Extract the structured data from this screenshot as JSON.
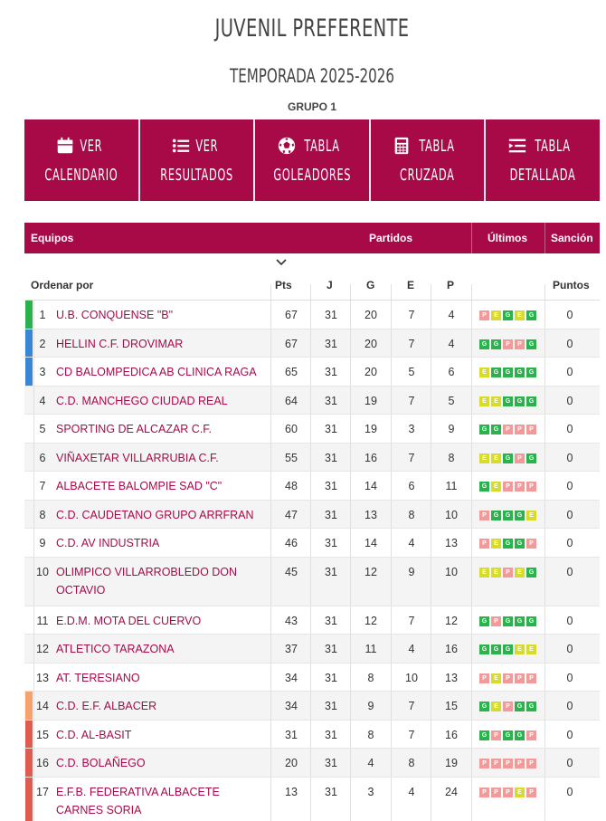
{
  "title": "JUVENIL PREFERENTE",
  "season": "TEMPORADA 2025-2026",
  "group": "GRUPO 1",
  "menu": [
    {
      "line1": "VER",
      "line2": "CALENDARIO",
      "icon": "calendar-icon",
      "name": "ver-calendario-button"
    },
    {
      "line1": "VER",
      "line2": "RESULTADOS",
      "icon": "list-icon",
      "name": "ver-resultados-button"
    },
    {
      "line1": "TABLA",
      "line2": "GOLEADORES",
      "icon": "soccer-ball-icon",
      "name": "tabla-goleadores-button"
    },
    {
      "line1": "TABLA",
      "line2": "CRUZADA",
      "icon": "calculator-icon",
      "name": "tabla-cruzada-button"
    },
    {
      "line1": "TABLA",
      "line2": "DETALLADA",
      "icon": "detailed-list-icon",
      "name": "tabla-detallada-button"
    }
  ],
  "table": {
    "header": {
      "equipos": "Equipos",
      "partidos": "Partidos",
      "ultimos": "Últimos",
      "sancion": "Sanción"
    },
    "subheader": {
      "ordenar": "Ordenar por",
      "pts": "Pts",
      "j": "J",
      "g": "G",
      "e": "E",
      "p": "P",
      "puntos": "Puntos"
    },
    "colors": {
      "accent": "#a80a48",
      "green_zone": "#2bb24c",
      "blue_zone": "#3a86d6",
      "orange_zone": "#f5a26b",
      "red_zone": "#e05a4f"
    },
    "rows": [
      {
        "pos": "1",
        "team": "U.B. CONQUENSE \"B\"",
        "pts": "67",
        "j": "31",
        "g": "20",
        "e": "7",
        "p": "4",
        "last": [
          "P",
          "E",
          "G",
          "E",
          "G"
        ],
        "sancion": "0",
        "zone": "green"
      },
      {
        "pos": "2",
        "team": "HELLIN C.F. DROVIMAR",
        "pts": "67",
        "j": "31",
        "g": "20",
        "e": "7",
        "p": "4",
        "last": [
          "G",
          "G",
          "P",
          "P",
          "G"
        ],
        "sancion": "0",
        "zone": "blue"
      },
      {
        "pos": "3",
        "team": "CD BALOMPEDICA AB CLINICA RAGA",
        "pts": "65",
        "j": "31",
        "g": "20",
        "e": "5",
        "p": "6",
        "last": [
          "E",
          "G",
          "G",
          "G",
          "G"
        ],
        "sancion": "0",
        "zone": "blue"
      },
      {
        "pos": "4",
        "team": "C.D. MANCHEGO CIUDAD REAL",
        "pts": "64",
        "j": "31",
        "g": "19",
        "e": "7",
        "p": "5",
        "last": [
          "E",
          "E",
          "G",
          "G",
          "G"
        ],
        "sancion": "0",
        "zone": ""
      },
      {
        "pos": "5",
        "team": "SPORTING DE ALCAZAR C.F.",
        "pts": "60",
        "j": "31",
        "g": "19",
        "e": "3",
        "p": "9",
        "last": [
          "G",
          "G",
          "P",
          "P",
          "P"
        ],
        "sancion": "0",
        "zone": ""
      },
      {
        "pos": "6",
        "team": "VIÑAXETAR VILLARRUBIA C.F.",
        "pts": "55",
        "j": "31",
        "g": "16",
        "e": "7",
        "p": "8",
        "last": [
          "E",
          "E",
          "G",
          "P",
          "G"
        ],
        "sancion": "0",
        "zone": ""
      },
      {
        "pos": "7",
        "team": "ALBACETE BALOMPIE SAD \"C\"",
        "pts": "48",
        "j": "31",
        "g": "14",
        "e": "6",
        "p": "11",
        "last": [
          "G",
          "E",
          "P",
          "P",
          "P"
        ],
        "sancion": "0",
        "zone": ""
      },
      {
        "pos": "8",
        "team": "C.D. CAUDETANO GRUPO ARRFRAN",
        "pts": "47",
        "j": "31",
        "g": "13",
        "e": "8",
        "p": "10",
        "last": [
          "P",
          "G",
          "G",
          "G",
          "E"
        ],
        "sancion": "0",
        "zone": ""
      },
      {
        "pos": "9",
        "team": "C.D. AV INDUSTRIA",
        "pts": "46",
        "j": "31",
        "g": "14",
        "e": "4",
        "p": "13",
        "last": [
          "P",
          "E",
          "G",
          "G",
          "P"
        ],
        "sancion": "0",
        "zone": ""
      },
      {
        "pos": "10",
        "team": "OLIMPICO VILLARROBLEDO DON OCTAVIO",
        "pts": "45",
        "j": "31",
        "g": "12",
        "e": "9",
        "p": "10",
        "last": [
          "E",
          "E",
          "P",
          "E",
          "G"
        ],
        "sancion": "0",
        "zone": ""
      },
      {
        "pos": "11",
        "team": "E.D.M. MOTA DEL CUERVO",
        "pts": "43",
        "j": "31",
        "g": "12",
        "e": "7",
        "p": "12",
        "last": [
          "G",
          "P",
          "G",
          "G",
          "G"
        ],
        "sancion": "0",
        "zone": ""
      },
      {
        "pos": "12",
        "team": "ATLETICO TARAZONA",
        "pts": "37",
        "j": "31",
        "g": "11",
        "e": "4",
        "p": "16",
        "last": [
          "G",
          "G",
          "G",
          "E",
          "E"
        ],
        "sancion": "0",
        "zone": ""
      },
      {
        "pos": "13",
        "team": "AT. TERESIANO",
        "pts": "34",
        "j": "31",
        "g": "8",
        "e": "10",
        "p": "13",
        "last": [
          "P",
          "E",
          "P",
          "P",
          "P"
        ],
        "sancion": "0",
        "zone": ""
      },
      {
        "pos": "14",
        "team": "C.D. E.F. ALBACER",
        "pts": "34",
        "j": "31",
        "g": "9",
        "e": "7",
        "p": "15",
        "last": [
          "G",
          "E",
          "P",
          "G",
          "G"
        ],
        "sancion": "0",
        "zone": "orange"
      },
      {
        "pos": "15",
        "team": "C.D. AL-BASIT",
        "pts": "31",
        "j": "31",
        "g": "8",
        "e": "7",
        "p": "16",
        "last": [
          "G",
          "P",
          "G",
          "G",
          "P"
        ],
        "sancion": "0",
        "zone": "red"
      },
      {
        "pos": "16",
        "team": "C.D. BOLAÑEGO",
        "pts": "20",
        "j": "31",
        "g": "4",
        "e": "8",
        "p": "19",
        "last": [
          "P",
          "P",
          "P",
          "P",
          "P"
        ],
        "sancion": "0",
        "zone": "red"
      },
      {
        "pos": "17",
        "team": "E.F.B. FEDERATIVA ALBACETE CARNES SORIA",
        "pts": "13",
        "j": "31",
        "g": "3",
        "e": "4",
        "p": "24",
        "last": [
          "P",
          "P",
          "P",
          "E",
          "P"
        ],
        "sancion": "0",
        "zone": "red"
      }
    ]
  }
}
